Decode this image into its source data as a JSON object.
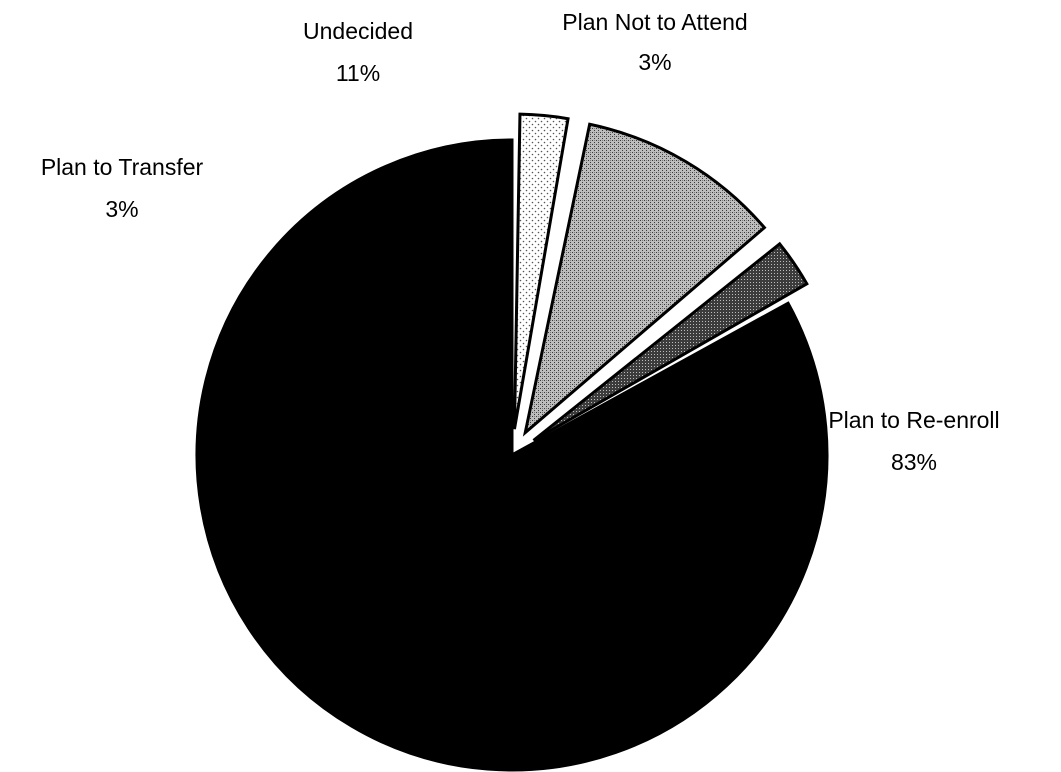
{
  "chart_data": {
    "type": "pie",
    "title": "",
    "slices": [
      {
        "label": "Plan to Re-enroll",
        "value": 83,
        "value_label": "83%",
        "fill": "solid-black",
        "exploded": false
      },
      {
        "label": "Plan to Transfer",
        "value": 3,
        "value_label": "3%",
        "fill": "light-dotted",
        "exploded": true
      },
      {
        "label": "Undecided",
        "value": 11,
        "value_label": "11%",
        "fill": "medium-gray-stipple",
        "exploded": true
      },
      {
        "label": "Plan Not to Attend",
        "value": 3,
        "value_label": "3%",
        "fill": "dark-gray-stipple",
        "exploded": true
      }
    ],
    "legend": "none",
    "colors": {
      "solid-black": "#000000",
      "dark-gray-stipple": "#4a4a4a",
      "medium-gray-stipple": "#9a9a9a",
      "light-dotted": "#e6e6e6",
      "outline": "#000000"
    }
  }
}
